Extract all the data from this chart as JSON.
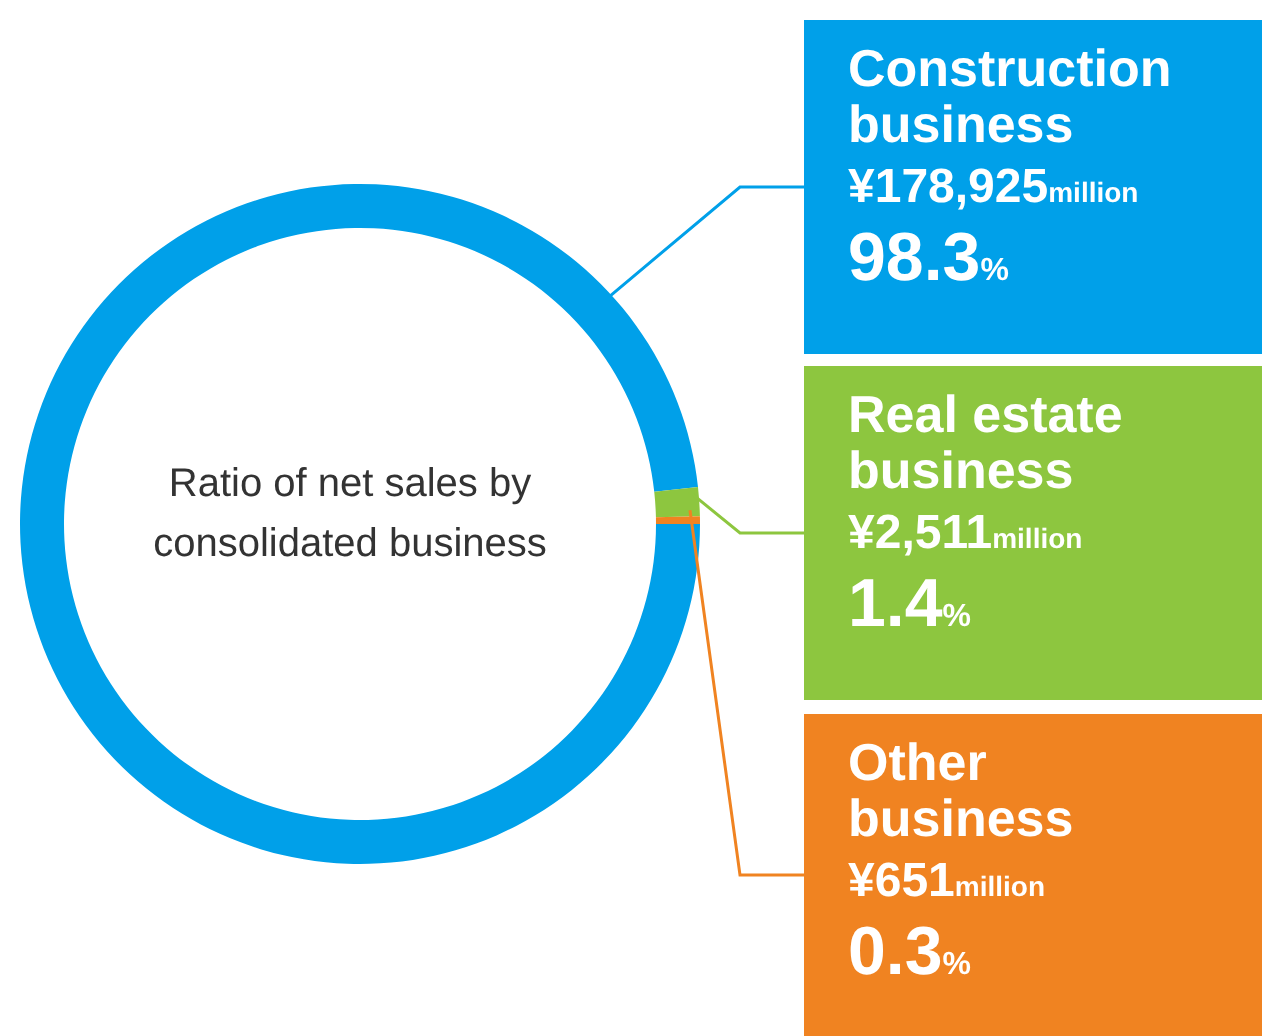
{
  "chart_data": {
    "type": "donut",
    "title": "Ratio of net sales by consolidated business",
    "categories": [
      "Construction business",
      "Real estate business",
      "Other business"
    ],
    "values": [
      178925,
      2511,
      651
    ],
    "colors": [
      "#00a0e9",
      "#8dc63f",
      "#f08321"
    ],
    "value_labels": [
      "¥178,925million",
      "¥2,511million",
      "¥651million"
    ],
    "annotations": [
      {
        "text": "98.3%",
        "x": "Construction business"
      },
      {
        "text": "1.4%",
        "x": "Real estate business"
      },
      {
        "text": "0.3%",
        "x": "Other business"
      }
    ],
    "legend": false
  }
}
